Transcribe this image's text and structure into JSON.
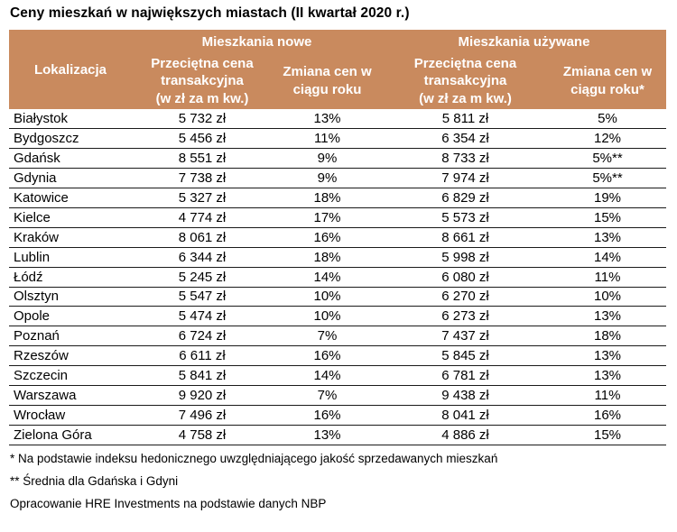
{
  "title": "Ceny mieszkań w największych miastach (II kwartał 2020 r.)",
  "colors": {
    "header_bg": "#C98A5E",
    "header_text": "#FFFFFF",
    "row_divider": "#1A1A1A",
    "text": "#000000",
    "background": "#FFFFFF"
  },
  "chart_data": {
    "type": "table",
    "title": "Ceny mieszkań w największych miastach (II kwartał 2020 r.)",
    "group_headers": {
      "location": "Lokalizacja",
      "new": "Mieszkania nowe",
      "used": "Mieszkania używane"
    },
    "sub_headers": {
      "price_new": "Przeciętna cena\ntransakcyjna\n(w zł za m kw.)",
      "change_new": "Zmiana cen w\nciągu roku",
      "price_used": "Przeciętna cena\ntransakcyjna\n(w zł za m kw.)",
      "change_used": "Zmiana cen w\nciągu roku*"
    },
    "columns": [
      "Lokalizacja",
      "Mieszkania nowe – Przeciętna cena transakcyjna (w zł za m kw.)",
      "Mieszkania nowe – Zmiana cen w ciągu roku",
      "Mieszkania używane – Przeciętna cena transakcyjna (w zł za m kw.)",
      "Mieszkania używane – Zmiana cen w ciągu roku*"
    ],
    "rows": [
      [
        "Białystok",
        "5 732 zł",
        "13%",
        "5 811 zł",
        "5%"
      ],
      [
        "Bydgoszcz",
        "5 456 zł",
        "11%",
        "6 354 zł",
        "12%"
      ],
      [
        "Gdańsk",
        "8 551 zł",
        "9%",
        "8 733 zł",
        "5%**"
      ],
      [
        "Gdynia",
        "7 738 zł",
        "9%",
        "7 974 zł",
        "5%**"
      ],
      [
        "Katowice",
        "5 327 zł",
        "18%",
        "6 829 zł",
        "19%"
      ],
      [
        "Kielce",
        "4 774 zł",
        "17%",
        "5 573 zł",
        "15%"
      ],
      [
        "Kraków",
        "8 061 zł",
        "16%",
        "8 661 zł",
        "13%"
      ],
      [
        "Lublin",
        "6 344 zł",
        "18%",
        "5 998 zł",
        "14%"
      ],
      [
        "Łódź",
        "5 245 zł",
        "14%",
        "6 080 zł",
        "11%"
      ],
      [
        "Olsztyn",
        "5 547 zł",
        "10%",
        "6 270 zł",
        "10%"
      ],
      [
        "Opole",
        "5 474 zł",
        "10%",
        "6 273 zł",
        "13%"
      ],
      [
        "Poznań",
        "6 724 zł",
        "7%",
        "7 437 zł",
        "18%"
      ],
      [
        "Rzeszów",
        "6 611 zł",
        "16%",
        "5 845 zł",
        "13%"
      ],
      [
        "Szczecin",
        "5 841 zł",
        "14%",
        "6 781 zł",
        "13%"
      ],
      [
        "Warszawa",
        "9 920 zł",
        "7%",
        "9 438 zł",
        "11%"
      ],
      [
        "Wrocław",
        "7 496 zł",
        "16%",
        "8 041 zł",
        "16%"
      ],
      [
        "Zielona Góra",
        "4 758 zł",
        "13%",
        "4 886 zł",
        "15%"
      ]
    ]
  },
  "footnotes": {
    "note1": "* Na podstawie indeksu hedonicznego uwzględniającego jakość sprzedawanych mieszkań",
    "note2": "** Średnia dla Gdańska i Gdyni",
    "note3": "Opracowanie HRE Investments na podstawie danych NBP"
  }
}
